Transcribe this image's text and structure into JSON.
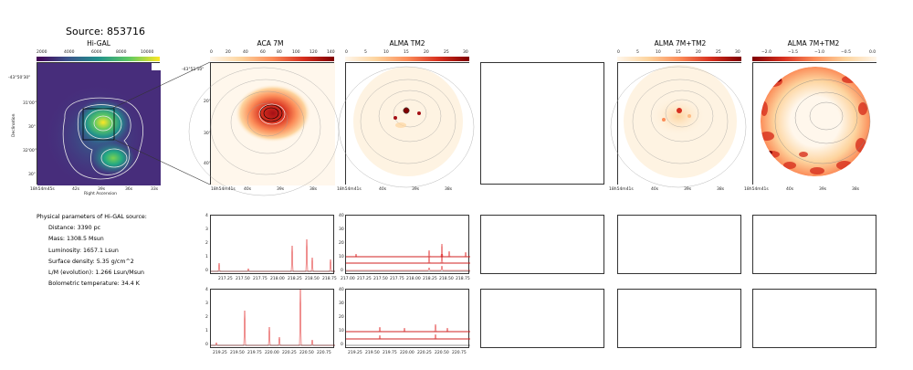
{
  "source_title": "Source: 853716",
  "panels": {
    "higal": {
      "title": "Hi-GAL",
      "colorbar_ticks": [
        "2000",
        "4000",
        "6000",
        "8000",
        "10000"
      ],
      "y_ticks": [
        "-43°50'30\"",
        "31'00\"",
        "30\"",
        "32'00\"",
        "30\""
      ],
      "x_ticks": [
        "18h54m45s",
        "42s",
        "39s",
        "36s",
        "33s"
      ],
      "ylabel": "Declination",
      "xlabel": "Right Ascension"
    },
    "aca7m": {
      "title": "ACA 7M",
      "colorbar_ticks": [
        "0",
        "20",
        "40",
        "60",
        "80",
        "100",
        "120",
        "140"
      ],
      "y_ticks": [
        "-43°51'10\"",
        "20\"",
        "30\"",
        "40\""
      ],
      "x_ticks": [
        "18h54m41s",
        "40s",
        "39s",
        "38s"
      ]
    },
    "almatm2": {
      "title": "ALMA TM2",
      "colorbar_ticks": [
        "0",
        "5",
        "10",
        "15",
        "20",
        "25",
        "30"
      ],
      "x_ticks": [
        "18h54m41s",
        "40s",
        "39s",
        "38s"
      ]
    },
    "alma7mtm2": {
      "title": "ALMA 7M+TM2",
      "colorbar_ticks": [
        "0",
        "5",
        "10",
        "15",
        "20",
        "25",
        "30"
      ],
      "x_ticks": [
        "18h54m41s",
        "40s",
        "39s",
        "38s"
      ]
    },
    "alma7mtm2_b": {
      "title": "ALMA 7M+TM2",
      "colorbar_ticks": [
        "−2.0",
        "−1.5",
        "−1.0",
        "−0.5",
        "0.0"
      ],
      "x_ticks": [
        "18h54m41s",
        "40s",
        "39s",
        "38s"
      ]
    }
  },
  "parameters": {
    "heading": "Physical parameters of Hi-GAL source:",
    "lines": [
      "Distance: 3390 pc",
      "Mass: 1308.5 Msun",
      "Luminosity: 1657.1 Lsun",
      "Surface density: 5.35 g/cm^2",
      "L/M (evolution): 1.266 Lsun/Msun",
      "Bolometric temperature: 34.4 K"
    ]
  },
  "spectra": {
    "row1_aca": {
      "y_ticks": [
        "4",
        "3",
        "2",
        "1",
        "0"
      ],
      "x_ticks": [
        "217.25",
        "217.50",
        "217.75",
        "218.00",
        "218.25",
        "218.50",
        "218.75"
      ]
    },
    "row1_alma": {
      "y_ticks": [
        "40",
        "30",
        "20",
        "10",
        "0"
      ],
      "x_ticks": [
        "217.00",
        "217.25",
        "217.50",
        "217.75",
        "218.00",
        "218.25",
        "218.50",
        "218.75"
      ]
    },
    "row2_aca": {
      "y_ticks": [
        "4",
        "3",
        "2",
        "1",
        "0"
      ],
      "x_ticks": [
        "219.25",
        "219.50",
        "219.75",
        "220.00",
        "220.25",
        "220.50",
        "220.75"
      ]
    },
    "row2_alma": {
      "y_ticks": [
        "40",
        "30",
        "20",
        "10",
        "0"
      ],
      "x_ticks": [
        "219.25",
        "219.50",
        "219.75",
        "220.00",
        "220.25",
        "220.50",
        "220.75"
      ]
    }
  },
  "colors": {
    "spectrum": "#e02020",
    "viridis_bg": "#46327e",
    "orrd_peak": "#8b0000"
  }
}
